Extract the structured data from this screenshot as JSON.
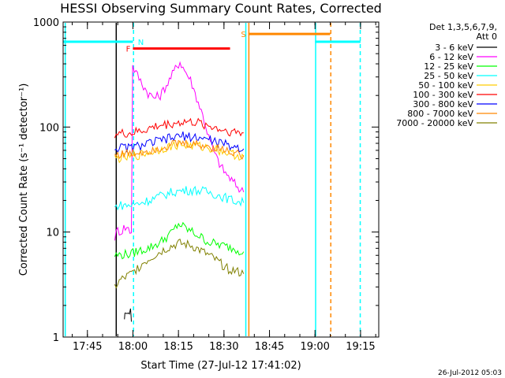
{
  "chart_data": {
    "type": "line",
    "title": "HESSI Observing Summary Count Rates, Corrected",
    "xlabel": "Start Time (27-Jul-12 17:41:02)",
    "ylabel": "Corrected Count Rate (s⁻¹ detector⁻¹)",
    "x_units": "minutes after 17:41:02",
    "xlim": [
      -4,
      100
    ],
    "ylim": [
      1,
      1000
    ],
    "yscale": "log",
    "x_ticks": [
      {
        "t": 4,
        "label": "17:45"
      },
      {
        "t": 19,
        "label": "18:00"
      },
      {
        "t": 34,
        "label": "18:15"
      },
      {
        "t": 49,
        "label": "18:30"
      },
      {
        "t": 64,
        "label": "18:45"
      },
      {
        "t": 79,
        "label": "19:00"
      },
      {
        "t": 94,
        "label": "19:15"
      }
    ],
    "y_ticks": [
      {
        "v": 1,
        "label": "1"
      },
      {
        "v": 10,
        "label": "10"
      },
      {
        "v": 100,
        "label": "100"
      },
      {
        "v": 1000,
        "label": "1000"
      }
    ],
    "legend_header": [
      "Det 1,3,5,6,7,9,",
      "Att 0"
    ],
    "series": [
      {
        "name": "3 - 6 keV",
        "color": "#000000",
        "points": [
          [
            16.2,
            1.4
          ],
          [
            16.5,
            1.8
          ],
          [
            17.5,
            1.6
          ],
          [
            18.2,
            1.9
          ],
          [
            18.5,
            1.4
          ]
        ]
      },
      {
        "name": "6 - 12 keV",
        "color": "#ff00ff",
        "points": [
          [
            13,
            9
          ],
          [
            14,
            10.5
          ],
          [
            15,
            10
          ],
          [
            16,
            11
          ],
          [
            17,
            11
          ],
          [
            18.5,
            10
          ],
          [
            18.9,
            380
          ],
          [
            20,
            330
          ],
          [
            22,
            260
          ],
          [
            24,
            210
          ],
          [
            26,
            190
          ],
          [
            28,
            200
          ],
          [
            31,
            280
          ],
          [
            33,
            360
          ],
          [
            34.5,
            420
          ],
          [
            36,
            350
          ],
          [
            38,
            280
          ],
          [
            40,
            190
          ],
          [
            42,
            130
          ],
          [
            44,
            80
          ],
          [
            46,
            55
          ],
          [
            48,
            42
          ],
          [
            50,
            35
          ],
          [
            52,
            30
          ],
          [
            54,
            26
          ],
          [
            55.5,
            24
          ]
        ]
      },
      {
        "name": "12 - 25 keV",
        "color": "#00ff00",
        "points": [
          [
            13,
            6
          ],
          [
            18.5,
            6.2
          ],
          [
            20,
            6.5
          ],
          [
            24,
            7
          ],
          [
            28,
            8
          ],
          [
            32,
            10
          ],
          [
            34,
            12
          ],
          [
            36,
            11
          ],
          [
            40,
            9.5
          ],
          [
            44,
            8
          ],
          [
            48,
            7.5
          ],
          [
            52,
            7
          ],
          [
            55.5,
            6.5
          ]
        ]
      },
      {
        "name": "25 - 50 keV",
        "color": "#00ffff",
        "points": [
          [
            13,
            17
          ],
          [
            14,
            18
          ],
          [
            18.5,
            18
          ],
          [
            20,
            18.5
          ],
          [
            24,
            20
          ],
          [
            28,
            22
          ],
          [
            32,
            24
          ],
          [
            36,
            25
          ],
          [
            40,
            25
          ],
          [
            44,
            24
          ],
          [
            48,
            22
          ],
          [
            52,
            20
          ],
          [
            55.5,
            19
          ]
        ]
      },
      {
        "name": "50 - 100 keV",
        "color": "#ffcc00",
        "points": [
          [
            13,
            50
          ],
          [
            18.5,
            52
          ],
          [
            24,
            57
          ],
          [
            30,
            64
          ],
          [
            34,
            68
          ],
          [
            40,
            66
          ],
          [
            46,
            62
          ],
          [
            52,
            55
          ],
          [
            55.5,
            52
          ]
        ]
      },
      {
        "name": "100 - 300 keV",
        "color": "#ff0000",
        "points": [
          [
            13,
            86
          ],
          [
            18.5,
            87
          ],
          [
            22,
            92
          ],
          [
            27,
            102
          ],
          [
            32,
            108
          ],
          [
            36,
            112
          ],
          [
            40,
            110
          ],
          [
            44,
            103
          ],
          [
            48,
            95
          ],
          [
            52,
            90
          ],
          [
            55.5,
            88
          ]
        ]
      },
      {
        "name": "300 - 800 keV",
        "color": "#0000ff",
        "points": [
          [
            13,
            63
          ],
          [
            18.5,
            64
          ],
          [
            22,
            67
          ],
          [
            27,
            73
          ],
          [
            32,
            79
          ],
          [
            35,
            82
          ],
          [
            40,
            80
          ],
          [
            44,
            76
          ],
          [
            48,
            70
          ],
          [
            52,
            65
          ],
          [
            55.5,
            62
          ]
        ]
      },
      {
        "name": "800 - 7000 keV",
        "color": "#ff8800",
        "points": [
          [
            13,
            55
          ],
          [
            18.5,
            56
          ],
          [
            24,
            60
          ],
          [
            30,
            66
          ],
          [
            34,
            70
          ],
          [
            40,
            68
          ],
          [
            46,
            64
          ],
          [
            52,
            58
          ],
          [
            55.5,
            54
          ]
        ]
      },
      {
        "name": "7000 - 20000 keV",
        "color": "#808000",
        "points": [
          [
            13,
            3
          ],
          [
            15,
            3.5
          ],
          [
            18.5,
            4
          ],
          [
            22,
            5
          ],
          [
            26,
            6
          ],
          [
            30,
            7
          ],
          [
            34,
            7.8
          ],
          [
            38,
            7.5
          ],
          [
            42,
            6.5
          ],
          [
            46,
            5.5
          ],
          [
            50,
            4.5
          ],
          [
            55.5,
            4
          ]
        ]
      }
    ],
    "flag_bars": [
      {
        "label": "N",
        "color": "#00ffff",
        "segments": [
          [
            -4,
            19
          ],
          [
            79,
            94
          ]
        ],
        "level": 650
      },
      {
        "label": "F",
        "color": "#ff0000",
        "segments": [
          [
            19,
            51
          ]
        ],
        "level": 560
      },
      {
        "label": "S",
        "color": "#ff8800",
        "segments": [
          [
            57,
            84
          ]
        ],
        "level": 770
      }
    ],
    "vlines": [
      {
        "t": 13.5,
        "color": "#000000",
        "style": "solid"
      },
      {
        "t": 19.2,
        "color": "#00ffff",
        "style": "dashed"
      },
      {
        "t": 56.2,
        "color": "#00ffff",
        "style": "solid"
      },
      {
        "t": 57.2,
        "color": "#ff8800",
        "style": "solid"
      },
      {
        "t": 79.2,
        "color": "#00ffff",
        "style": "solid"
      },
      {
        "t": 84.2,
        "color": "#ff8800",
        "style": "dashed"
      },
      {
        "t": 93.9,
        "color": "#00ffff",
        "style": "dashed"
      },
      {
        "t": -3.3,
        "color": "#00ffff",
        "style": "solid"
      }
    ],
    "footer": "26-Jul-2012 05:03"
  }
}
